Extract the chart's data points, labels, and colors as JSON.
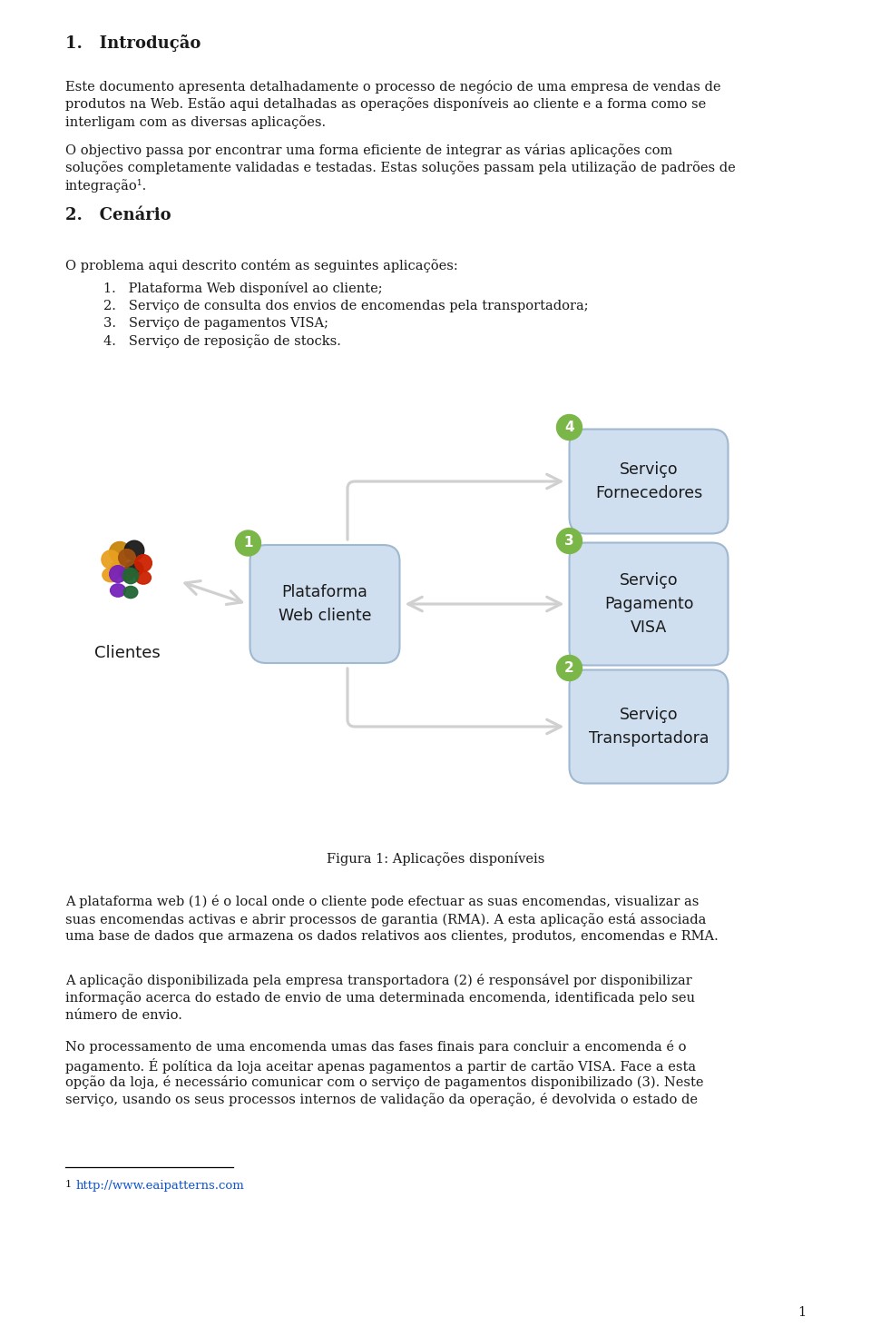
{
  "title": "1.   Introdução",
  "section2_title": "2.   Cenário",
  "para1_line1": "Este documento apresenta detalhadamente o processo de negócio de uma empresa de vendas de",
  "para1_line2": "produtos na Web. Estão aqui detalhadas as operações disponíveis ao cliente e a forma como se",
  "para1_line3": "interligam com as diversas aplicações.",
  "para2_line1": "O objectivo passa por encontrar uma forma eficiente de integrar as várias aplicações com",
  "para2_line2": "soluções completamente validadas e testadas. Estas soluções passam pela utilização de padrões de",
  "para2_line3": "integração¹.",
  "para3": "O problema aqui descrito contém as seguintes aplicações:",
  "list_items": [
    "1.   Plataforma Web disponível ao cliente;",
    "2.   Serviço de consulta dos envios de encomendas pela transportadora;",
    "3.   Serviço de pagamentos VISA;",
    "4.   Serviço de reposição de stocks."
  ],
  "fig_caption": "Figura 1: Aplicações disponíveis",
  "para_platform_l1": "A plataforma web (1) é o local onde o cliente pode efectuar as suas encomendas, visualizar as",
  "para_platform_l2": "suas encomendas activas e abrir processos de garantia (RMA). A esta aplicação está associada",
  "para_platform_l3": "uma base de dados que armazena os dados relativos aos clientes, produtos, encomendas e RMA.",
  "para_transport_l1": "A aplicação disponibilizada pela empresa transportadora (2) é responsável por disponibilizar",
  "para_transport_l2": "informação acerca do estado de envio de uma determinada encomenda, identificada pelo seu",
  "para_transport_l3": "número de envio.",
  "para_payment_l1": "No processamento de uma encomenda umas das fases finais para concluir a encomenda é o",
  "para_payment_l2": "pagamento. É política da loja aceitar apenas pagamentos a partir de cartão VISA. Face a esta",
  "para_payment_l3": "opção da loja, é necessário comunicar com o serviço de pagamentos disponibilizado (3). Neste",
  "para_payment_l4": "serviço, usando os seus processos internos de validação da operação, é devolvida o estado de",
  "footnote_num": "1",
  "footnote_url": "http://www.eaipatterns.com",
  "page_num": "1",
  "bg_color": "#ffffff",
  "text_color": "#1a1a1a",
  "box_fill": "#cfdff0",
  "box_stroke": "#a0b8d0",
  "green_circle_color": "#7ab648",
  "arrow_color": "#d0d0d0",
  "clientes_label": "Clientes",
  "plataforma_label": "Plataforma\nWeb cliente",
  "serv_fornec_label": "Serviço\nFornecedores",
  "serv_transp_label": "Serviço\nTransportadora",
  "serv_pag_label": "Serviço\nPagamento\nVISA",
  "link_color": "#1155cc"
}
